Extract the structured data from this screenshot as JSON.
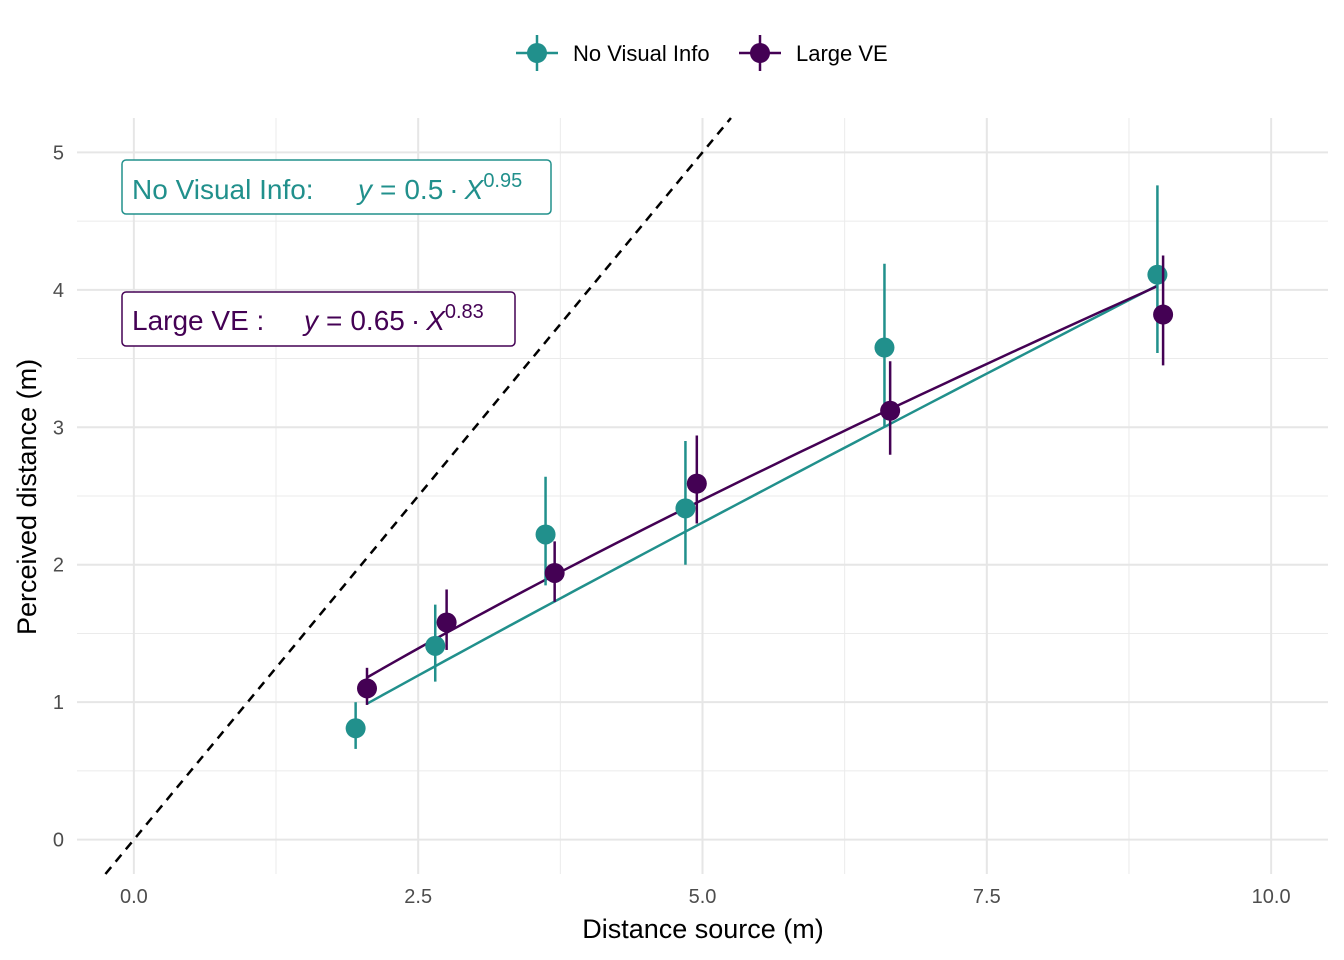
{
  "chart_data": {
    "type": "scatter",
    "xlabel": "Distance source (m)",
    "ylabel": "Perceived distance (m)",
    "xlim": [
      -0.5,
      10.5
    ],
    "ylim": [
      -0.25,
      5.25
    ],
    "x_ticks": [
      0.0,
      2.5,
      5.0,
      7.5,
      10.0
    ],
    "x_tick_labels": [
      "0.0",
      "2.5",
      "5.0",
      "7.5",
      "10.0"
    ],
    "y_ticks": [
      0,
      1,
      2,
      3,
      4,
      5
    ],
    "y_tick_labels": [
      "0",
      "1",
      "2",
      "3",
      "4",
      "5"
    ],
    "grid": true,
    "legend_position": "top",
    "reference_line": {
      "style": "dashed",
      "color": "#000000",
      "slope": 1,
      "intercept": 0
    },
    "series": [
      {
        "name": "No Visual Info",
        "color": "#21908C",
        "points": [
          {
            "x": 1.95,
            "y": 0.81,
            "ymin": 0.66,
            "ymax": 1.0
          },
          {
            "x": 2.65,
            "y": 1.41,
            "ymin": 1.15,
            "ymax": 1.71
          },
          {
            "x": 3.62,
            "y": 2.22,
            "ymin": 1.85,
            "ymax": 2.64
          },
          {
            "x": 4.85,
            "y": 2.41,
            "ymin": 2.0,
            "ymax": 2.9
          },
          {
            "x": 6.6,
            "y": 3.58,
            "ymin": 3.0,
            "ymax": 4.19
          },
          {
            "x": 9.0,
            "y": 4.11,
            "ymin": 3.54,
            "ymax": 4.76
          }
        ],
        "fit": {
          "a": 0.5,
          "b": 0.95,
          "x_range": [
            2.05,
            9.0
          ]
        },
        "annotation": {
          "label": "No Visual Info:",
          "coef": "0.5",
          "exponent": "0.95"
        }
      },
      {
        "name": "Large VE",
        "color": "#440154",
        "points": [
          {
            "x": 2.05,
            "y": 1.1,
            "ymin": 0.98,
            "ymax": 1.25
          },
          {
            "x": 2.75,
            "y": 1.58,
            "ymin": 1.38,
            "ymax": 1.82
          },
          {
            "x": 3.7,
            "y": 1.94,
            "ymin": 1.73,
            "ymax": 2.17
          },
          {
            "x": 4.95,
            "y": 2.59,
            "ymin": 2.3,
            "ymax": 2.94
          },
          {
            "x": 6.65,
            "y": 3.12,
            "ymin": 2.8,
            "ymax": 3.48
          },
          {
            "x": 9.05,
            "y": 3.82,
            "ymin": 3.45,
            "ymax": 4.25
          }
        ],
        "fit": {
          "a": 0.65,
          "b": 0.83,
          "x_range": [
            2.05,
            9.0
          ]
        },
        "annotation": {
          "label": "Large VE :",
          "coef": "0.65",
          "exponent": "0.83"
        }
      }
    ]
  }
}
